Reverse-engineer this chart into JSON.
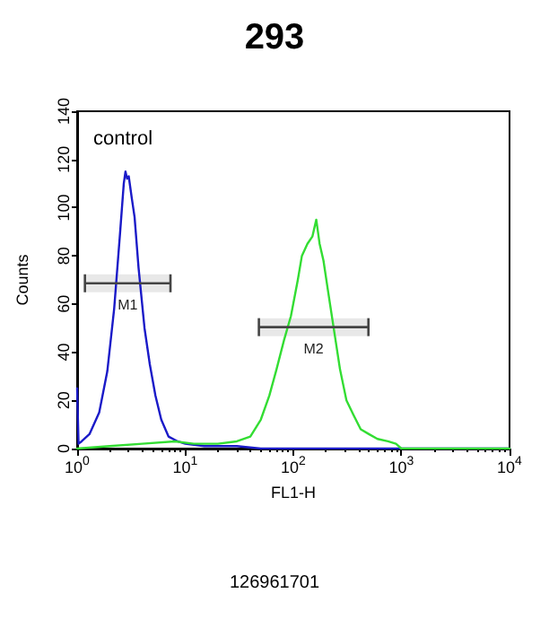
{
  "chart_data": {
    "type": "line",
    "title": "293",
    "xlabel": "FL1-H",
    "ylabel": "Counts",
    "log": "x",
    "grid": false,
    "marker": "none",
    "line_style": "solid",
    "xlim": [
      1,
      10000
    ],
    "xticks": [
      {
        "value": 1,
        "label": "10$^{0}$"
      },
      {
        "value": 10,
        "label": "10$^{1}$"
      },
      {
        "value": 100,
        "label": "10$^{2}$"
      },
      {
        "value": 1000,
        "label": "10$^{3}$"
      },
      {
        "value": 10000,
        "label": "10$^{4}$"
      }
    ],
    "ylim": [
      0,
      140
    ],
    "yticks": [
      0,
      20,
      40,
      60,
      80,
      100,
      120,
      140
    ],
    "series": [
      {
        "color": "#1a1ac8",
        "x": [
          1,
          1.03,
          1.1,
          1.3,
          1.6,
          1.9,
          2.2,
          2.5,
          2.7,
          2.8,
          2.9,
          3.0,
          3.2,
          3.4,
          3.7,
          4.2,
          4.7,
          5.3,
          6,
          7,
          8.5,
          10,
          15,
          20,
          30,
          50,
          100,
          200,
          1000,
          10000
        ],
        "values": [
          25,
          2,
          3,
          6,
          15,
          32,
          58,
          90,
          110,
          115,
          112,
          113,
          104,
          96,
          75,
          50,
          35,
          22,
          12,
          5,
          3,
          2,
          1,
          1,
          1,
          0,
          0,
          0,
          0,
          0
        ]
      },
      {
        "color": "#33dd33",
        "x": [
          1,
          2,
          4,
          8,
          12,
          20,
          30,
          40,
          50,
          60,
          70,
          82,
          95,
          110,
          120,
          135,
          150,
          163,
          175,
          190,
          210,
          240,
          270,
          310,
          360,
          420,
          500,
          600,
          750,
          890,
          1000,
          10000
        ],
        "values": [
          0,
          1,
          2,
          3,
          2,
          2,
          3,
          5,
          12,
          22,
          33,
          45,
          55,
          70,
          80,
          85,
          88,
          95,
          85,
          78,
          65,
          48,
          33,
          20,
          14,
          8,
          6,
          4,
          3,
          2,
          0,
          0
        ]
      }
    ],
    "bands": [
      {
        "axis": "x",
        "from": 1.18,
        "to": 7.3,
        "label": "M1"
      },
      {
        "axis": "x",
        "from": 48,
        "to": 495,
        "label": "M2"
      }
    ],
    "annotations": [
      "control",
      "126961701"
    ]
  }
}
